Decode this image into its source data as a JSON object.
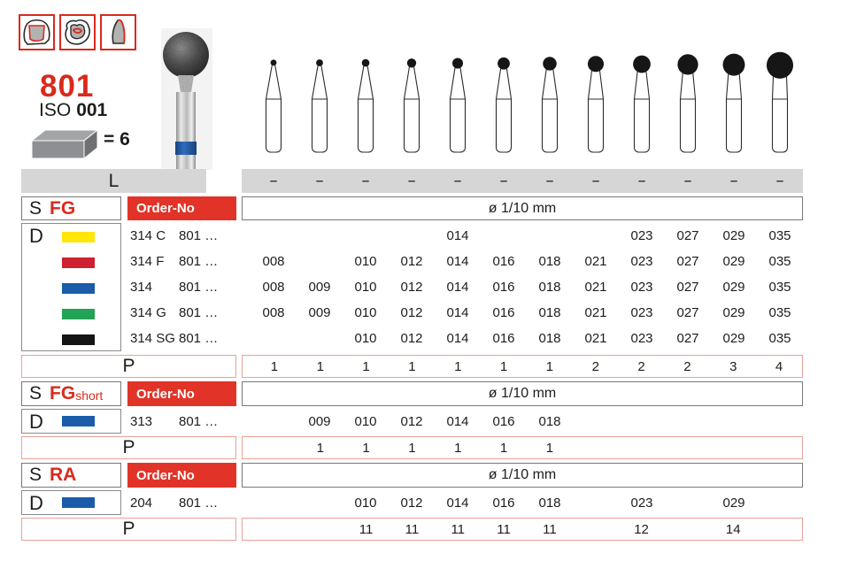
{
  "product": {
    "number": "801",
    "iso_label": "ISO",
    "iso_value": "001",
    "pack_equals": "= 6"
  },
  "table": {
    "l_label": "L",
    "p_label": "P",
    "s_label": "S",
    "d_label": "D",
    "order_no_label": "Order-No",
    "sizes_header": "ø 1/10 mm",
    "l_values": [
      "–",
      "–",
      "–",
      "–",
      "–",
      "–",
      "–",
      "–",
      "–",
      "–",
      "–",
      "–"
    ],
    "column_sizes": [
      8,
      9,
      10,
      12,
      14,
      16,
      18,
      21,
      23,
      27,
      29,
      35
    ]
  },
  "colors": {
    "accent_red": "#da291c",
    "bar_gray": "#d6d6d6",
    "p_border": "#eba198"
  },
  "sections": [
    {
      "shank": "FG",
      "shank_suffix": "",
      "rows": [
        {
          "grit_color": "#ffe508",
          "code": "314 C",
          "order": "801 …",
          "sizes": [
            "",
            "",
            "",
            "",
            "014",
            "",
            "",
            "",
            "023",
            "027",
            "029",
            "035"
          ]
        },
        {
          "grit_color": "#ce2030",
          "code": "314 F",
          "order": "801 …",
          "sizes": [
            "008",
            "",
            "010",
            "012",
            "014",
            "016",
            "018",
            "021",
            "023",
            "027",
            "029",
            "035"
          ]
        },
        {
          "grit_color": "#1a5caa",
          "code": "314",
          "order": "801 …",
          "sizes": [
            "008",
            "009",
            "010",
            "012",
            "014",
            "016",
            "018",
            "021",
            "023",
            "027",
            "029",
            "035"
          ]
        },
        {
          "grit_color": "#22a355",
          "code": "314 G",
          "order": "801 …",
          "sizes": [
            "008",
            "009",
            "010",
            "012",
            "014",
            "016",
            "018",
            "021",
            "023",
            "027",
            "029",
            "035"
          ]
        },
        {
          "grit_color": "#151515",
          "code": "314 SG",
          "order": "801 …",
          "sizes": [
            "",
            "",
            "010",
            "012",
            "014",
            "016",
            "018",
            "021",
            "023",
            "027",
            "029",
            "035"
          ]
        }
      ],
      "p_values": [
        "1",
        "1",
        "1",
        "1",
        "1",
        "1",
        "1",
        "2",
        "2",
        "2",
        "3",
        "4"
      ]
    },
    {
      "shank": "FG",
      "shank_suffix": "short",
      "rows": [
        {
          "grit_color": "#1a5caa",
          "code": "313",
          "order": "801 …",
          "sizes": [
            "",
            "009",
            "010",
            "012",
            "014",
            "016",
            "018",
            "",
            "",
            "",
            "",
            ""
          ]
        }
      ],
      "p_values": [
        "",
        "1",
        "1",
        "1",
        "1",
        "1",
        "1",
        "",
        "",
        "",
        "",
        ""
      ]
    },
    {
      "shank": "RA",
      "shank_suffix": "",
      "rows": [
        {
          "grit_color": "#1a5caa",
          "code": "204",
          "order": "801 …",
          "sizes": [
            "",
            "",
            "010",
            "012",
            "014",
            "016",
            "018",
            "",
            "023",
            "",
            "029",
            ""
          ]
        }
      ],
      "p_values": [
        "",
        "",
        "11",
        "11",
        "11",
        "11",
        "11",
        "",
        "12",
        "",
        "14",
        ""
      ]
    }
  ]
}
